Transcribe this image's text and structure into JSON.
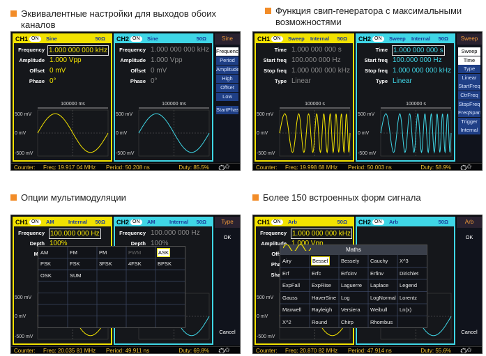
{
  "screens": [
    {
      "heading": "Эквивалентные настройки для выходов обоих каналов",
      "channels": [
        {
          "tag": "CH1",
          "state": "ON",
          "header": [
            "Sine",
            "50Ω"
          ],
          "params": [
            {
              "label": "Frequency",
              "value": "1.000 000 000 kHz"
            },
            {
              "label": "Amplitude",
              "value": "1.000 Vpp"
            },
            {
              "label": "Offset",
              "value": "0 mV"
            },
            {
              "label": "Phase",
              "value": "0°"
            }
          ],
          "time_label": "100000 ms",
          "levels": [
            "500 mV",
            "0 mV",
            "-500 mV"
          ]
        },
        {
          "tag": "CH2",
          "state": "ON",
          "header": [
            "Sine",
            "50Ω"
          ],
          "params": [
            {
              "label": "Frequency",
              "value": "1.000 000 000 kHz"
            },
            {
              "label": "Amplitude",
              "value": "1.000 Vpp"
            },
            {
              "label": "Offset",
              "value": "0 mV"
            },
            {
              "label": "Phase",
              "value": "0°"
            }
          ],
          "time_label": "100000 ms",
          "levels": [
            "500 mV",
            "0 mV",
            "-500 mV"
          ]
        }
      ],
      "menu": {
        "title": "Sine",
        "items": [
          "Frequency",
          "Period",
          "Amplitude",
          "High",
          "Offset",
          "Low",
          "StartPhase"
        ]
      },
      "status": {
        "label": "Counter:",
        "freq": "Freq: 19.917 04 MHz",
        "period": "Period: 50.208 ns",
        "duty": "Duty: 85.5%"
      }
    },
    {
      "heading": "Функция свип-генератора с максимальными возможностями",
      "channels": [
        {
          "tag": "CH1",
          "state": "ON",
          "header": [
            "Sweep",
            "Internal",
            "50Ω"
          ],
          "params": [
            {
              "label": "Time",
              "value": "1.000 000 000 s"
            },
            {
              "label": "Start freq",
              "value": "100.000 000 Hz"
            },
            {
              "label": "Stop freq",
              "value": "1.000 000 000 kHz"
            },
            {
              "label": "Type",
              "value": "Linear"
            }
          ],
          "time_label": "100000 s",
          "levels": [
            "500 mV",
            "0 mV",
            "-500 mV"
          ]
        },
        {
          "tag": "CH2",
          "state": "ON",
          "header": [
            "Sweep",
            "Internal",
            "50Ω"
          ],
          "params": [
            {
              "label": "Time",
              "value": "1.000 000 000 s"
            },
            {
              "label": "Start freq",
              "value": "100.000 000 Hz"
            },
            {
              "label": "Stop freq",
              "value": "1.000 000 000 kHz"
            },
            {
              "label": "Type",
              "value": "Linear"
            }
          ],
          "time_label": "100000 s",
          "levels": [
            "500 mV",
            "0 mV",
            "-500 mV"
          ]
        }
      ],
      "menu": {
        "title": "Sweep",
        "items": [
          "Sweep",
          "Time",
          "Type",
          "Linear",
          "StartFreq",
          "CtrFreq",
          "StopFreq",
          "FreqSpan",
          "Trigger",
          "Internal"
        ]
      },
      "status": {
        "label": "Counter:",
        "freq": "Freq: 19.998 68 MHz",
        "period": "Period: 50.003 ns",
        "duty": "Duty: 58.9%"
      }
    },
    {
      "heading": "Опции мультимодуляции",
      "channels": [
        {
          "tag": "CH1",
          "state": "ON",
          "header": [
            "AM",
            "Internal",
            "50Ω"
          ],
          "params": [
            {
              "label": "Frequency",
              "value": "100.000 000 Hz"
            },
            {
              "label": "Depth",
              "value": "100%"
            },
            {
              "label": "Mod"
            }
          ],
          "levels": [
            "500 mV",
            "0 mV",
            "-500 mV"
          ]
        },
        {
          "tag": "CH2",
          "state": "ON",
          "header": [
            "AM",
            "Internal",
            "50Ω"
          ],
          "params": [
            {
              "label": "Frequency",
              "value": "100.000 000 Hz"
            },
            {
              "label": "Depth",
              "value": "100%"
            }
          ]
        }
      ],
      "popup": {
        "items": [
          "AM",
          "FM",
          "PM",
          "PWM",
          "ASK",
          "PSK",
          "FSK",
          "3FSK",
          "4FSK",
          "BPSK",
          "OSK",
          "SUM"
        ]
      },
      "menu": {
        "title": "Type",
        "items": [
          "OK",
          "Cancel"
        ]
      },
      "status": {
        "label": "Counter:",
        "freq": "Freq: 20.035 81 MHz",
        "period": "Period: 49.911 ns",
        "duty": "Duty: 69.8%"
      }
    },
    {
      "heading": "Более 150  встроенных форм сигнала",
      "channels": [
        {
          "tag": "CH1",
          "state": "ON",
          "header": [
            "Arb",
            "50Ω"
          ],
          "params": [
            {
              "label": "Frequency",
              "value": "1.000 000 000 kHz"
            },
            {
              "label": "Amplitude",
              "value": "1.000 Vpp"
            },
            {
              "label": "Offset"
            },
            {
              "label": "Phase"
            },
            {
              "label": "Shape"
            }
          ],
          "levels": [
            "500 mV",
            "0 mV",
            "-500 mV"
          ]
        },
        {
          "tag": "CH2",
          "state": "ON",
          "header": [
            "Arb",
            "50Ω"
          ],
          "params": []
        }
      ],
      "popup": {
        "title": "Maths",
        "items": [
          "Airy",
          "Bessel",
          "Bessely",
          "Cauchy",
          "X^3",
          "Erf",
          "Erfc",
          "Erfcinv",
          "Erfinv",
          "Dirichlet",
          "ExpFall",
          "ExpRise",
          "Laguerre",
          "Laplace",
          "Legend",
          "Gauss",
          "HaverSine",
          "Log",
          "LogNormal",
          "Lorentz",
          "Maxwell",
          "Rayleigh",
          "Versiera",
          "Weibull",
          "Ln(x)",
          "X^2",
          "Round",
          "Chirp",
          "Rhombus"
        ]
      },
      "menu": {
        "title": "Arb",
        "items": [
          "OK",
          "Cancel"
        ]
      },
      "status": {
        "label": "Counter:",
        "freq": "Freq: 20.870 82 MHz",
        "period": "Period: 47.914 ns",
        "duty": "Duty: 55.6%"
      }
    }
  ]
}
